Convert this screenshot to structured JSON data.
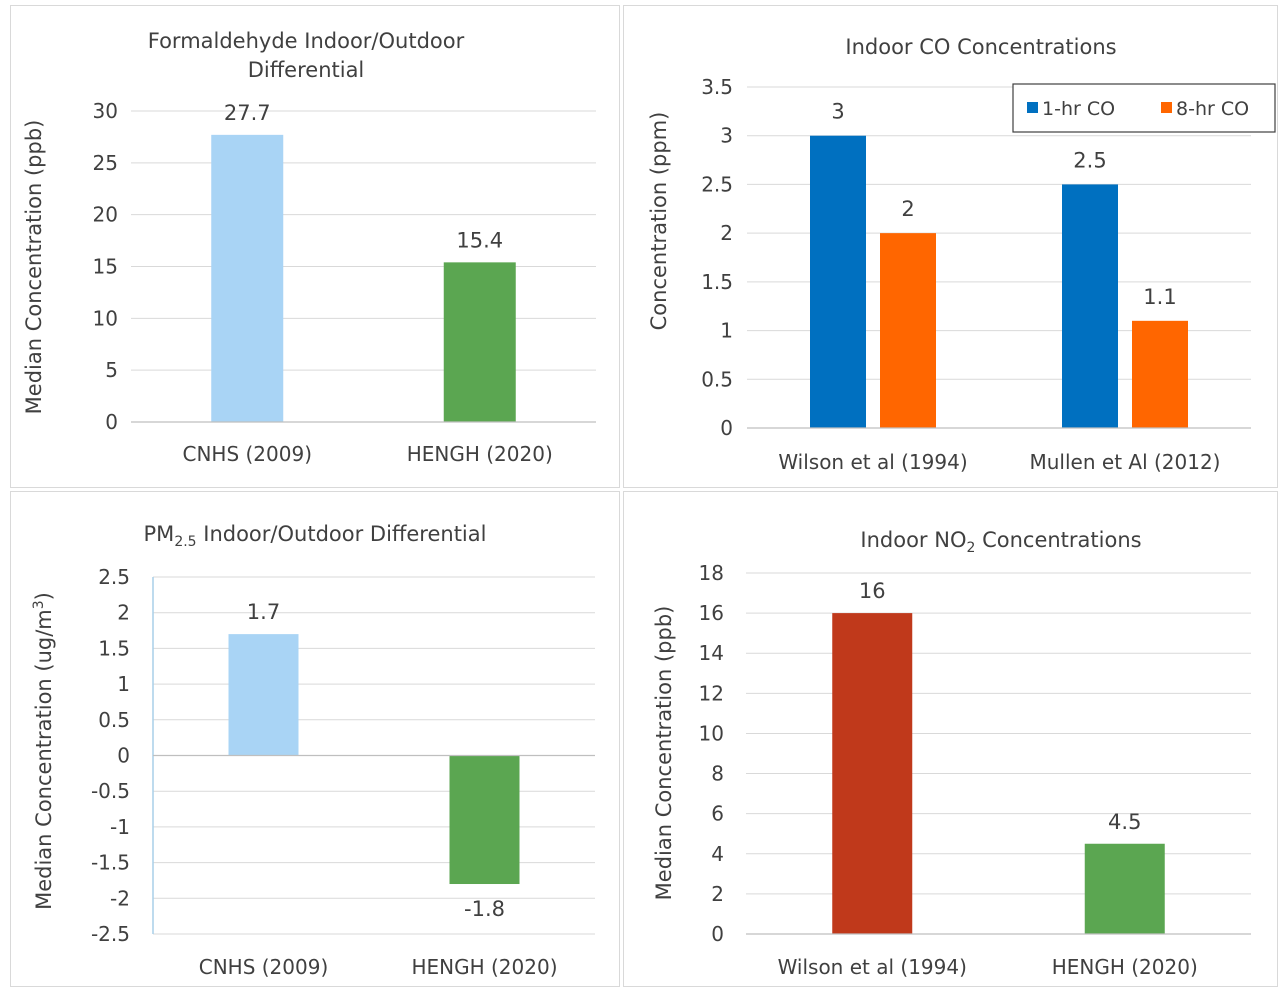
{
  "chart_data": [
    {
      "type": "bar",
      "title": "Formaldehyde Indoor/Outdoor Differential",
      "title_lines": [
        "Formaldehyde Indoor/Outdoor",
        "Differential"
      ],
      "ylabel": "Median Concentration (ppb)",
      "categories": [
        "CNHS (2009)",
        "HENGH (2020)"
      ],
      "values": [
        27.7,
        15.4
      ],
      "value_labels": [
        "27.7",
        "15.4"
      ],
      "colors": [
        "#a9d4f5",
        "#5ba651"
      ],
      "ylim": [
        0,
        30
      ],
      "yticks": [
        0,
        5,
        10,
        15,
        20,
        25,
        30
      ],
      "ytick_labels": [
        "0",
        "5",
        "10",
        "15",
        "20",
        "25",
        "30"
      ],
      "grid": true
    },
    {
      "type": "bar",
      "title": "Indoor CO Concentrations",
      "ylabel": "Concentration (ppm)",
      "categories": [
        "Wilson et al (1994)",
        "Mullen et Al (2012)"
      ],
      "series": [
        {
          "name": "1-hr CO",
          "values": [
            3,
            2.5
          ],
          "value_labels": [
            "3",
            "2.5"
          ],
          "color": "#0070c0"
        },
        {
          "name": "8-hr CO",
          "values": [
            2,
            1.1
          ],
          "value_labels": [
            "2",
            "1.1"
          ],
          "color": "#ff6600"
        }
      ],
      "ylim": [
        0,
        3.5
      ],
      "yticks": [
        0,
        0.5,
        1,
        1.5,
        2,
        2.5,
        3,
        3.5
      ],
      "ytick_labels": [
        "0",
        "0.5",
        "1",
        "1.5",
        "2",
        "2.5",
        "3",
        "3.5"
      ],
      "legend": "top-right",
      "grid": true
    },
    {
      "type": "bar",
      "title": "PM2.5 Indoor/Outdoor Differential",
      "title_parts": {
        "pre": "PM",
        "sub": "2.5",
        "post": " Indoor/Outdoor Differential"
      },
      "ylabel": "Median Concentration (ug/m3)",
      "ylabel_parts": {
        "pre": "Median Concentration  (ug/m",
        "sup": "3",
        "post": ")"
      },
      "categories": [
        "CNHS (2009)",
        "HENGH (2020)"
      ],
      "values": [
        1.7,
        -1.8
      ],
      "value_labels": [
        "1.7",
        "-1.8"
      ],
      "colors": [
        "#a9d4f5",
        "#5ba651"
      ],
      "ylim": [
        -2.5,
        2.5
      ],
      "yticks": [
        -2.5,
        -2,
        -1.5,
        -1,
        -0.5,
        0,
        0.5,
        1,
        1.5,
        2,
        2.5
      ],
      "ytick_labels": [
        "-2.5",
        "-2",
        "-1.5",
        "-1",
        "-0.5",
        "0",
        "0.5",
        "1",
        "1.5",
        "2",
        "2.5"
      ],
      "grid": true
    },
    {
      "type": "bar",
      "title": "Indoor NO2 Concentrations",
      "title_parts": {
        "pre": "Indoor NO",
        "sub": "2",
        "post": " Concentrations"
      },
      "ylabel": "Median Concentration  (ppb)",
      "categories": [
        "Wilson et al (1994)",
        "HENGH (2020)"
      ],
      "values": [
        16,
        4.5
      ],
      "value_labels": [
        "16",
        "4.5"
      ],
      "colors": [
        "#c0391b",
        "#5ba651"
      ],
      "ylim": [
        0,
        18
      ],
      "yticks": [
        0,
        2,
        4,
        6,
        8,
        10,
        12,
        14,
        16,
        18
      ],
      "ytick_labels": [
        "0",
        "2",
        "4",
        "6",
        "8",
        "10",
        "12",
        "14",
        "16",
        "18"
      ],
      "grid": true
    }
  ]
}
